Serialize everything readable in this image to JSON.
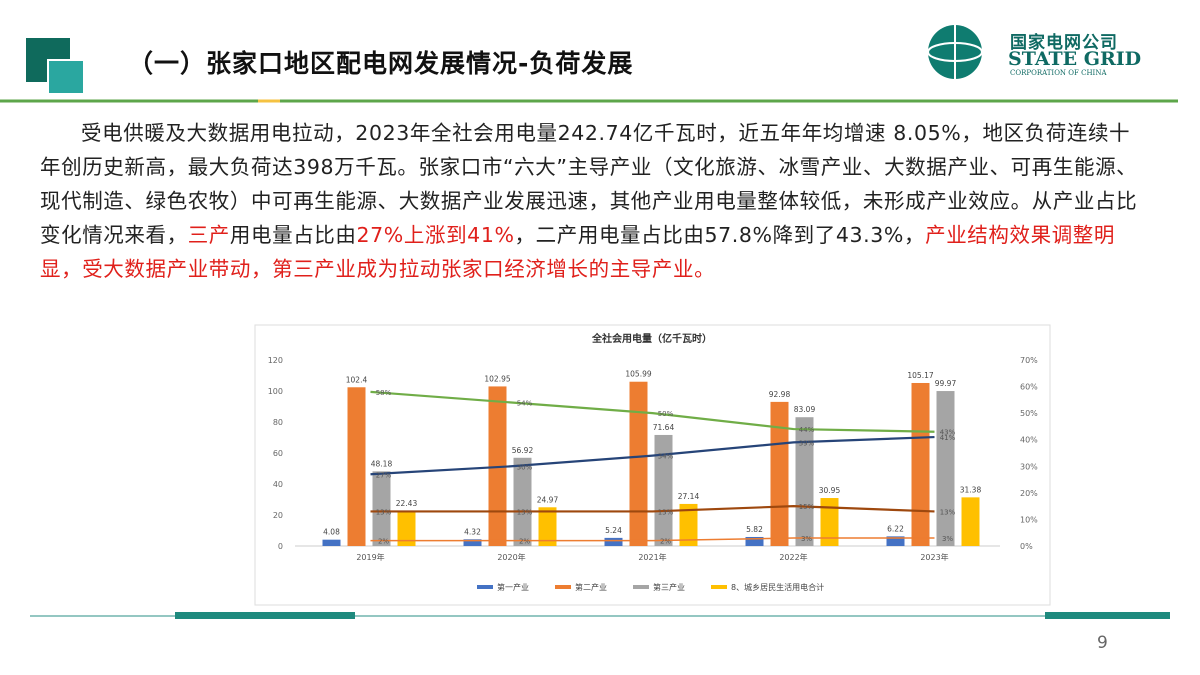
{
  "header": {
    "title": "（一）张家口地区配电网发展情况-负荷发展",
    "logo_cn": "国家电网公司",
    "logo_en": "STATE GRID",
    "logo_sub": "CORPORATION OF CHINA"
  },
  "paragraph": [
    {
      "text": "受电供暖及大数据用电拉动，2023年全社会用电量242.74亿千瓦时，近五年年均增速 8.05%，地区负荷连续十年创历史新高，最大负荷达398万千瓦。张家口市“六大”主导产业（文化旅游、冰雪产业、大数据产业、可再生能源、现代制造、绿色农牧）中可再生能源、大数据产业发展迅速，其他产业用电量整体较低，未形成产业效应。从产业占比变化情况来看，",
      "red": false
    },
    {
      "text": "三产",
      "red": true
    },
    {
      "text": "用电量占比由",
      "red": false
    },
    {
      "text": "27%上涨到41%",
      "red": true
    },
    {
      "text": "，二产用电量占比由57.8%降到了43.3%，",
      "red": false
    },
    {
      "text": "产业结构效果调整明显，受大数据产业带动，第三产业成为拉动张家口经济增长的主导产业。",
      "red": true
    }
  ],
  "chart_data": {
    "type": "bar",
    "title": "全社会用电量（亿千瓦时）",
    "categories": [
      "2019年",
      "2020年",
      "2021年",
      "2022年",
      "2023年"
    ],
    "ylim": [
      0,
      120
    ],
    "yticks": [
      0,
      20,
      40,
      60,
      80,
      100,
      120
    ],
    "y2lim": [
      0,
      70
    ],
    "y2ticks": [
      {
        "value": 0,
        "label": "0%"
      },
      {
        "value": 10,
        "label": "10%"
      },
      {
        "value": 20,
        "label": "20%"
      },
      {
        "value": 30,
        "label": "30%"
      },
      {
        "value": 40,
        "label": "40%"
      },
      {
        "value": 50,
        "label": "50%"
      },
      {
        "value": 60,
        "label": "60%"
      },
      {
        "value": 70,
        "label": "70%"
      }
    ],
    "grid": false,
    "series": [
      {
        "name": "第一产业",
        "color": "#4472c4",
        "values": [
          4.08,
          4.32,
          5.24,
          5.82,
          6.22
        ]
      },
      {
        "name": "第二产业",
        "color": "#ed7d31",
        "values": [
          102.4,
          102.95,
          105.99,
          92.98,
          105.17
        ]
      },
      {
        "name": "第三产业",
        "color": "#a5a5a5",
        "values": [
          48.18,
          56.92,
          71.64,
          83.09,
          99.97
        ]
      },
      {
        "name": "8、城乡居民生活用电合计",
        "color": "#ffc000",
        "values": [
          22.43,
          24.97,
          27.14,
          30.95,
          31.38
        ]
      },
      {
        "type": "line",
        "axis": "y2",
        "color": "#70ad47",
        "values": [
          58,
          54,
          50,
          44,
          43
        ],
        "value_labels": [
          "58%",
          "54%",
          "50%",
          "44%",
          "43%"
        ]
      },
      {
        "type": "line",
        "axis": "y2",
        "color": "#264478",
        "values": [
          27,
          30,
          34,
          39,
          41
        ],
        "value_labels": [
          "27%",
          "30%",
          "34%",
          "39%",
          "41%"
        ]
      },
      {
        "type": "line",
        "axis": "y2",
        "color": "#9e480e",
        "values": [
          13,
          13,
          13,
          15,
          13
        ],
        "value_labels": [
          "13%",
          "13%",
          "13%",
          "15%",
          "13%"
        ]
      },
      {
        "type": "line",
        "axis": "y2",
        "color": "#ed7d31",
        "values": [
          2,
          2,
          2,
          3,
          3
        ],
        "value_labels": [
          "2%",
          "2%",
          "2%",
          "3%",
          "3%"
        ]
      }
    ]
  },
  "page_number": "9"
}
